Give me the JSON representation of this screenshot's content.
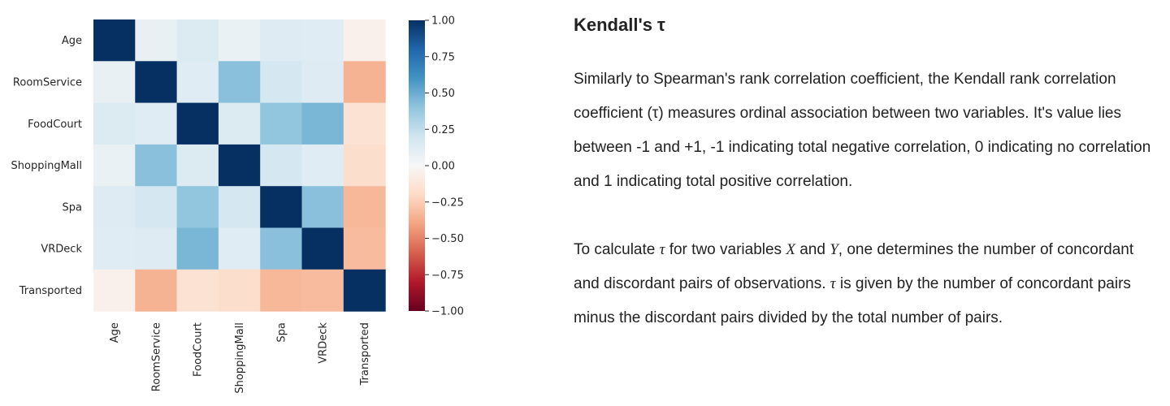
{
  "chart_data": {
    "type": "heatmap",
    "variables": [
      "Age",
      "RoomService",
      "FoodCourt",
      "ShoppingMall",
      "Spa",
      "VRDeck",
      "Transported"
    ],
    "values": [
      [
        1.0,
        0.08,
        0.14,
        0.07,
        0.13,
        0.12,
        -0.05
      ],
      [
        0.08,
        1.0,
        0.12,
        0.42,
        0.18,
        0.13,
        -0.35
      ],
      [
        0.14,
        0.12,
        1.0,
        0.14,
        0.4,
        0.46,
        -0.15
      ],
      [
        0.07,
        0.42,
        0.14,
        1.0,
        0.18,
        0.12,
        -0.18
      ],
      [
        0.13,
        0.18,
        0.4,
        0.18,
        1.0,
        0.42,
        -0.33
      ],
      [
        0.12,
        0.13,
        0.46,
        0.12,
        0.42,
        1.0,
        -0.32
      ],
      [
        -0.05,
        -0.35,
        -0.15,
        -0.18,
        -0.33,
        -0.32,
        1.0
      ]
    ],
    "vmin": -1.0,
    "vmax": 1.0,
    "colorbar_ticks": [
      "1.00",
      "0.75",
      "0.50",
      "0.25",
      "0.00",
      "−0.25",
      "−0.50",
      "−0.75",
      "−1.00"
    ],
    "colormap": "RdBu",
    "cmap_colors": [
      "#67001f",
      "#b2182b",
      "#d6604d",
      "#f4a582",
      "#fddbc7",
      "#f7f7f7",
      "#d1e5f0",
      "#92c5de",
      "#4393c3",
      "#2166ac",
      "#053061"
    ]
  },
  "article": {
    "title": "Kendall's τ",
    "paragraph1": "Similarly to Spearman's rank correlation coefficient, the Kendall rank correlation coefficient (τ) measures ordinal association between two variables. It's value lies between -1 and +1, -1 indicating total negative correlation, 0 indicating no correlation and 1 indicating total positive correlation.",
    "p2_a": "To calculate ",
    "p2_tau1": "τ",
    "p2_b": " for two variables ",
    "p2_x": "X",
    "p2_c": " and ",
    "p2_y": "Y",
    "p2_d": ", one determines the number of concordant and discordant pairs of observations. ",
    "p2_tau2": "τ",
    "p2_e": " is given by the number of concordant pairs minus the discordant pairs divided by the total number of pairs."
  }
}
